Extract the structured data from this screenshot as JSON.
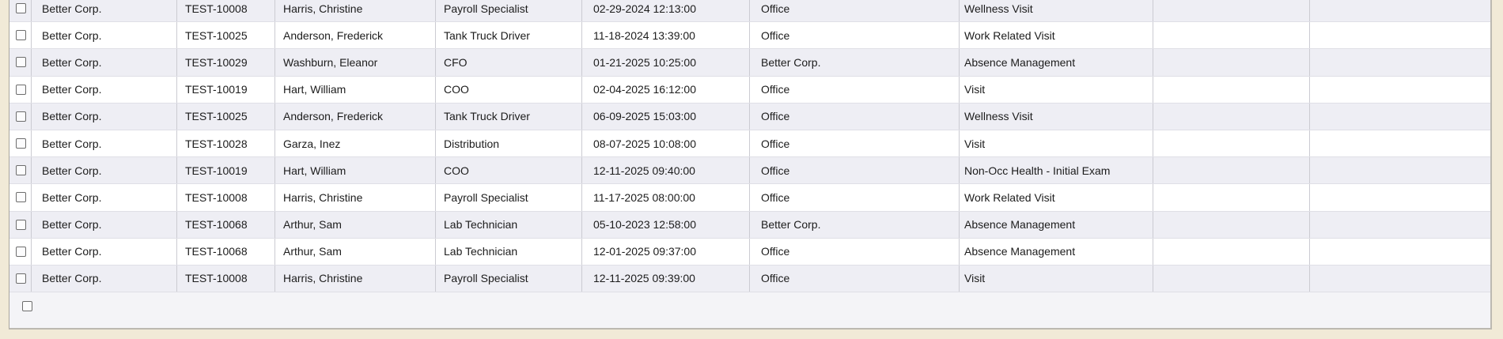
{
  "page": {
    "colors": {
      "page_background": "#f1ead7",
      "row_stripe": "#eeeef4",
      "row_plain": "#ffffff",
      "footer_background": "#f4f4f7",
      "grid_border": "#bcb9b1",
      "cell_divider": "#cbcbd2"
    }
  },
  "table": {
    "rows": [
      {
        "selected": false,
        "company": "Better Corp.",
        "employee_id": "TEST-10008",
        "employee_name": "Harris, Christine",
        "job_title": "Payroll Specialist",
        "visit_datetime": "02-29-2024 12:13:00",
        "location": "Office",
        "visit_type": "Wellness Visit"
      },
      {
        "selected": false,
        "company": "Better Corp.",
        "employee_id": "TEST-10025",
        "employee_name": "Anderson, Frederick",
        "job_title": "Tank Truck Driver",
        "visit_datetime": "11-18-2024 13:39:00",
        "location": "Office",
        "visit_type": "Work Related Visit"
      },
      {
        "selected": false,
        "company": "Better Corp.",
        "employee_id": "TEST-10029",
        "employee_name": "Washburn, Eleanor",
        "job_title": "CFO",
        "visit_datetime": "01-21-2025 10:25:00",
        "location": "Better Corp.",
        "visit_type": "Absence Management"
      },
      {
        "selected": false,
        "company": "Better Corp.",
        "employee_id": "TEST-10019",
        "employee_name": "Hart, William",
        "job_title": "COO",
        "visit_datetime": "02-04-2025 16:12:00",
        "location": "Office",
        "visit_type": "Visit"
      },
      {
        "selected": false,
        "company": "Better Corp.",
        "employee_id": "TEST-10025",
        "employee_name": "Anderson, Frederick",
        "job_title": "Tank Truck Driver",
        "visit_datetime": "06-09-2025 15:03:00",
        "location": "Office",
        "visit_type": "Wellness Visit"
      },
      {
        "selected": false,
        "company": "Better Corp.",
        "employee_id": "TEST-10028",
        "employee_name": "Garza, Inez",
        "job_title": "Distribution",
        "visit_datetime": "08-07-2025 10:08:00",
        "location": "Office",
        "visit_type": "Visit"
      },
      {
        "selected": false,
        "company": "Better Corp.",
        "employee_id": "TEST-10019",
        "employee_name": "Hart, William",
        "job_title": "COO",
        "visit_datetime": "12-11-2025 09:40:00",
        "location": "Office",
        "visit_type": "Non-Occ Health - Initial Exam"
      },
      {
        "selected": false,
        "company": "Better Corp.",
        "employee_id": "TEST-10008",
        "employee_name": "Harris, Christine",
        "job_title": "Payroll Specialist",
        "visit_datetime": "11-17-2025 08:00:00",
        "location": "Office",
        "visit_type": "Work Related Visit"
      },
      {
        "selected": false,
        "company": "Better Corp.",
        "employee_id": "TEST-10068",
        "employee_name": "Arthur, Sam",
        "job_title": "Lab Technician",
        "visit_datetime": "05-10-2023 12:58:00",
        "location": "Better Corp.",
        "visit_type": "Absence Management"
      },
      {
        "selected": false,
        "company": "Better Corp.",
        "employee_id": "TEST-10068",
        "employee_name": "Arthur, Sam",
        "job_title": "Lab Technician",
        "visit_datetime": "12-01-2025 09:37:00",
        "location": "Office",
        "visit_type": "Absence Management"
      },
      {
        "selected": false,
        "company": "Better Corp.",
        "employee_id": "TEST-10008",
        "employee_name": "Harris, Christine",
        "job_title": "Payroll Specialist",
        "visit_datetime": "12-11-2025 09:39:00",
        "location": "Office",
        "visit_type": "Visit"
      }
    ],
    "footer": {
      "selected": false
    }
  }
}
